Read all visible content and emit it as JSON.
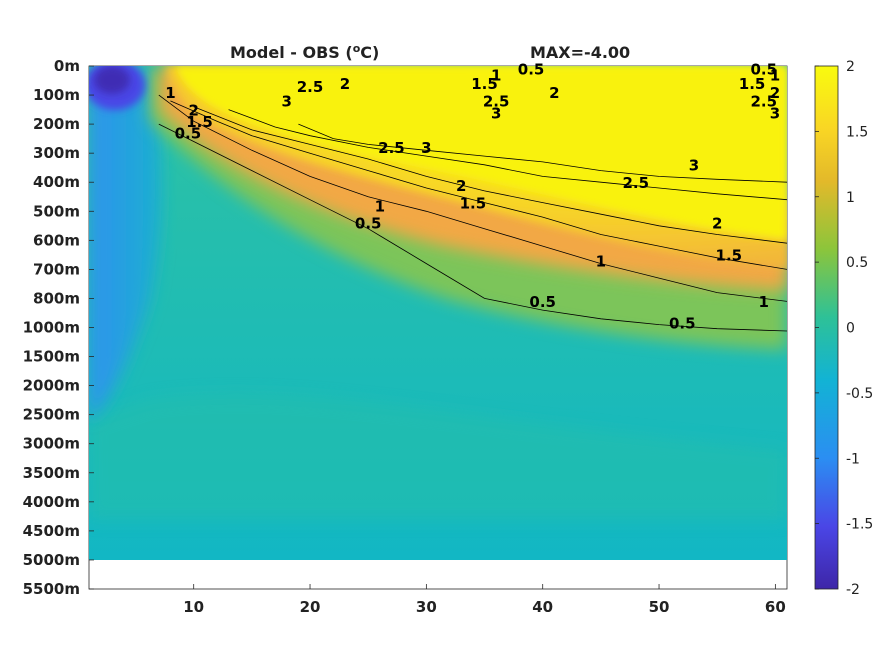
{
  "chart_data": {
    "type": "heatmap",
    "title": "Model - OBS (",
    "title_unit": "o",
    "title_unit_suffix": "C)",
    "max_label": "MAX=-4.00",
    "xlabel": "",
    "ylabel": "",
    "xlim": [
      1,
      61
    ],
    "x_ticks": [
      "10",
      "20",
      "30",
      "40",
      "50",
      "60"
    ],
    "x_tick_values": [
      10,
      20,
      30,
      40,
      50,
      60
    ],
    "y_ticks": [
      "0m",
      "100m",
      "200m",
      "300m",
      "400m",
      "500m",
      "600m",
      "700m",
      "800m",
      "1000m",
      "1500m",
      "2000m",
      "2500m",
      "3000m",
      "3500m",
      "4000m",
      "4500m",
      "5000m",
      "5500m"
    ],
    "colorbar": {
      "range": [
        -2,
        2
      ],
      "ticks": [
        "2",
        "1.5",
        "1",
        "0.5",
        "0",
        "-0.5",
        "-1",
        "-1.5",
        "-2"
      ],
      "colormap": [
        "#3e26a8",
        "#4a46e6",
        "#2b8ef2",
        "#12b3d4",
        "#2ec197",
        "#8cc53b",
        "#e3b92a",
        "#f9d624",
        "#f9fb0e"
      ]
    },
    "contour_levels": [
      0.5,
      1,
      1.5,
      2,
      2.5,
      3
    ],
    "contours": [
      {
        "level": 0.5,
        "x": [
          7,
          10,
          15,
          20,
          25,
          30,
          35,
          40,
          45,
          50,
          55,
          61
        ],
        "depth": [
          "200m",
          "260m",
          "360m",
          "460m",
          "560m",
          "680m",
          "800m",
          "880m",
          "940m",
          "980m",
          "1020m",
          "1060m"
        ]
      },
      {
        "level": 1,
        "x": [
          7,
          10,
          15,
          20,
          25,
          30,
          35,
          40,
          45,
          50,
          55,
          61
        ],
        "depth": [
          "100m",
          "190m",
          "290m",
          "380m",
          "450m",
          "500m",
          "560m",
          "620m",
          "680m",
          "730m",
          "780m",
          "820m"
        ]
      },
      {
        "level": 1.5,
        "x": [
          8,
          12,
          15,
          20,
          25,
          30,
          35,
          40,
          45,
          50,
          55,
          61
        ],
        "depth": [
          "120m",
          "190m",
          "240m",
          "300m",
          "360m",
          "420m",
          "470m",
          "520m",
          "580m",
          "620m",
          "660m",
          "700m"
        ]
      },
      {
        "level": 2,
        "x": [
          10,
          15,
          20,
          25,
          30,
          35,
          40,
          45,
          50,
          55,
          61
        ],
        "depth": [
          "140m",
          "220m",
          "270m",
          "320m",
          "380m",
          "430m",
          "470m",
          "510m",
          "550m",
          "580m",
          "610m"
        ]
      },
      {
        "level": 2.5,
        "x": [
          13,
          17,
          20,
          25,
          30,
          35,
          40,
          45,
          50,
          55,
          61
        ],
        "depth": [
          "150m",
          "210m",
          "240m",
          "280m",
          "310m",
          "340m",
          "380m",
          "400m",
          "420m",
          "440m",
          "460m"
        ]
      },
      {
        "level": 3,
        "x": [
          19,
          22,
          25,
          30,
          35,
          40,
          45,
          50,
          55,
          61
        ],
        "depth": [
          "200m",
          "250m",
          "270m",
          "290m",
          "310m",
          "330m",
          "360m",
          "380m",
          "390m",
          "400m"
        ]
      }
    ],
    "contour_labels": [
      {
        "text": "0.5",
        "x": 9.5,
        "y": "250m"
      },
      {
        "text": "1",
        "x": 8,
        "y": "110m"
      },
      {
        "text": "1.5",
        "x": 10.5,
        "y": "210m"
      },
      {
        "text": "2",
        "x": 10,
        "y": "170m"
      },
      {
        "text": "0.5",
        "x": 25,
        "y": "560m"
      },
      {
        "text": "1",
        "x": 26,
        "y": "500m"
      },
      {
        "text": "1.5",
        "x": 34,
        "y": "490m"
      },
      {
        "text": "2",
        "x": 33,
        "y": "430m"
      },
      {
        "text": "2.5",
        "x": 27,
        "y": "300m"
      },
      {
        "text": "3",
        "x": 30,
        "y": "300m"
      },
      {
        "text": "2.5",
        "x": 20,
        "y": "90m"
      },
      {
        "text": "2",
        "x": 23,
        "y": "80m"
      },
      {
        "text": "3",
        "x": 18,
        "y": "140m"
      },
      {
        "text": "1.5",
        "x": 35,
        "y": "80m"
      },
      {
        "text": "1",
        "x": 36,
        "y": "50m"
      },
      {
        "text": "0.5",
        "x": 39,
        "y": "30m"
      },
      {
        "text": "2.5",
        "x": 36,
        "y": "140m"
      },
      {
        "text": "3",
        "x": 36,
        "y": "180m"
      },
      {
        "text": "2",
        "x": 41,
        "y": "110m"
      },
      {
        "text": "3",
        "x": 53,
        "y": "360m"
      },
      {
        "text": "2.5",
        "x": 48,
        "y": "420m"
      },
      {
        "text": "2",
        "x": 55,
        "y": "560m"
      },
      {
        "text": "1.5",
        "x": 56,
        "y": "670m"
      },
      {
        "text": "1",
        "x": 45,
        "y": "690m"
      },
      {
        "text": "0.5",
        "x": 40,
        "y": "860m"
      },
      {
        "text": "0.5",
        "x": 52,
        "y": "1020m"
      },
      {
        "text": "1",
        "x": 59,
        "y": "860m"
      },
      {
        "text": "0.5",
        "x": 59,
        "y": "30m"
      },
      {
        "text": "1",
        "x": 60,
        "y": "50m"
      },
      {
        "text": "1.5",
        "x": 58,
        "y": "80m"
      },
      {
        "text": "2",
        "x": 61,
        "y": "110m"
      },
      {
        "text": "2.5",
        "x": 59,
        "y": "140m"
      },
      {
        "text": "3",
        "x": 60,
        "y": "180m"
      }
    ],
    "grid": false,
    "legend": "colorbar-right"
  }
}
